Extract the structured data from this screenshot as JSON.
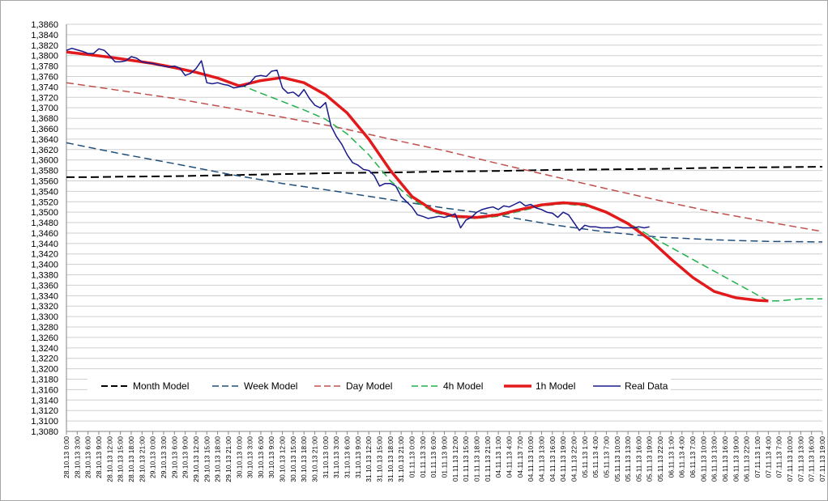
{
  "chart_data": {
    "type": "line",
    "title": "",
    "xlabel": "",
    "ylabel": "",
    "ylim": [
      1.308,
      1.386
    ],
    "y_ticks": [
      "1,3080",
      "1,3100",
      "1,3120",
      "1,3140",
      "1,3160",
      "1,3180",
      "1,3200",
      "1,3220",
      "1,3240",
      "1,3260",
      "1,3280",
      "1,3300",
      "1,3320",
      "1,3340",
      "1,3360",
      "1,3380",
      "1,3400",
      "1,3420",
      "1,3440",
      "1,3460",
      "1,3480",
      "1,3500",
      "1,3520",
      "1,3540",
      "1,3560",
      "1,3580",
      "1,3600",
      "1,3620",
      "1,3640",
      "1,3660",
      "1,3680",
      "1,3700",
      "1,3720",
      "1,3740",
      "1,3760",
      "1,3780",
      "1,3800",
      "1,3820",
      "1,3840",
      "1,3860"
    ],
    "x_ticks": [
      "28.10.13 0:00",
      "28.10.13 3:00",
      "28.10.13 6:00",
      "28.10.13 9:00",
      "28.10.13 12:00",
      "28.10.13 15:00",
      "28.10.13 18:00",
      "28.10.13 21:00",
      "29.10.13 0:00",
      "29.10.13 3:00",
      "29.10.13 6:00",
      "29.10.13 9:00",
      "29.10.13 12:00",
      "29.10.13 15:00",
      "29.10.13 18:00",
      "29.10.13 21:00",
      "30.10.13 0:00",
      "30.10.13 3:00",
      "30.10.13 6:00",
      "30.10.13 9:00",
      "30.10.13 12:00",
      "30.10.13 15:00",
      "30.10.13 18:00",
      "30.10.13 21:00",
      "31.10.13 0:00",
      "31.10.13 3:00",
      "31.10.13 6:00",
      "31.10.13 9:00",
      "31.10.13 12:00",
      "31.10.13 15:00",
      "31.10.13 18:00",
      "31.10.13 21:00",
      "01.11.13 0:00",
      "01.11.13 3:00",
      "01.11.13 6:00",
      "01.11.13 9:00",
      "01.11.13 12:00",
      "01.11.13 15:00",
      "01.11.13 18:00",
      "01.11.13 21:00",
      "04.11.13 1:00",
      "04.11.13 4:00",
      "04.11.13 7:00",
      "04.11.13 10:00",
      "04.11.13 13:00",
      "04.11.13 16:00",
      "04.11.13 19:00",
      "04.11.13 22:00",
      "05.11.13 1:00",
      "05.11.13 4:00",
      "05.11.13 7:00",
      "05.11.13 10:00",
      "05.11.13 13:00",
      "05.11.13 16:00",
      "05.11.13 19:00",
      "05.11.13 22:00",
      "06.11.13 1:00",
      "06.11.13 4:00",
      "06.11.13 7:00",
      "06.11.13 10:00",
      "06.11.13 13:00",
      "06.11.13 16:00",
      "06.11.13 19:00",
      "06.11.13 22:00",
      "07.11.13 1:00",
      "07.11.13 4:00",
      "07.11.13 7:00",
      "07.11.13 10:00",
      "07.11.13 13:00",
      "07.11.13 16:00",
      "07.11.13 19:00"
    ],
    "legend_position": "bottom-inside",
    "grid": true,
    "series": [
      {
        "name": "Month Model",
        "color": "#000000",
        "dash": "dashed",
        "width": 2,
        "x": [
          0,
          2,
          5,
          10,
          15,
          20,
          25,
          30,
          35,
          40,
          45,
          50,
          55,
          60,
          65,
          70
        ],
        "y": [
          1.3567,
          1.3567,
          1.3568,
          1.3569,
          1.3571,
          1.3573,
          1.3575,
          1.3576,
          1.3578,
          1.3579,
          1.3581,
          1.3582,
          1.3583,
          1.3585,
          1.3586,
          1.3587
        ]
      },
      {
        "name": "Week Model",
        "color": "#1f4e79",
        "dash": "dashed",
        "width": 1.5,
        "x": [
          0,
          5,
          10,
          15,
          20,
          25,
          30,
          35,
          40,
          45,
          50,
          55,
          60,
          65,
          70
        ],
        "y": [
          1.3633,
          1.3612,
          1.3593,
          1.3573,
          1.3555,
          1.354,
          1.3524,
          1.3508,
          1.3494,
          1.3476,
          1.3462,
          1.3452,
          1.3447,
          1.3444,
          1.3443
        ]
      },
      {
        "name": "Day Model",
        "color": "#c0504d",
        "dash": "dashed",
        "width": 1.5,
        "x": [
          0,
          5,
          10,
          15,
          20,
          25,
          30,
          35,
          40,
          45,
          50,
          55,
          60,
          65,
          70
        ],
        "y": [
          1.3748,
          1.3733,
          1.3718,
          1.37,
          1.3682,
          1.3663,
          1.364,
          1.3618,
          1.3593,
          1.3569,
          1.3545,
          1.3522,
          1.35,
          1.3481,
          1.3463
        ]
      },
      {
        "name": "4h Model",
        "color": "#22b14c",
        "dash": "dashed",
        "width": 1.5,
        "x": [
          16,
          18,
          20,
          22,
          24,
          26,
          28,
          30,
          32,
          34,
          36,
          38,
          40,
          42,
          44,
          46,
          48,
          50,
          52,
          54,
          65,
          66,
          67,
          68,
          70
        ],
        "y": [
          1.3745,
          1.3728,
          1.3712,
          1.3696,
          1.3678,
          1.365,
          1.361,
          1.356,
          1.3525,
          1.35,
          1.349,
          1.3488,
          1.3492,
          1.3502,
          1.3512,
          1.3516,
          1.3512,
          1.35,
          1.348,
          1.3455,
          1.333,
          1.333,
          1.3332,
          1.3334,
          1.3334
        ]
      },
      {
        "name": "1h Model",
        "color": "#e31a1c",
        "dash": "solid",
        "width": 3.5,
        "x": [
          0,
          2,
          4,
          6,
          8,
          10,
          12,
          14,
          16,
          18,
          20,
          22,
          24,
          26,
          28,
          30,
          32,
          34,
          36,
          38,
          40,
          42,
          44,
          46,
          48,
          50,
          52,
          54,
          56,
          58,
          60,
          62,
          64,
          65
        ],
        "y": [
          1.3807,
          1.3802,
          1.3797,
          1.3791,
          1.3785,
          1.3777,
          1.3768,
          1.3757,
          1.3742,
          1.3752,
          1.3758,
          1.3748,
          1.3725,
          1.369,
          1.364,
          1.358,
          1.353,
          1.3503,
          1.3492,
          1.349,
          1.3495,
          1.3505,
          1.3514,
          1.3518,
          1.3515,
          1.35,
          1.3478,
          1.3448,
          1.341,
          1.3375,
          1.3348,
          1.3336,
          1.3331,
          1.333
        ]
      },
      {
        "name": "Real Data",
        "color": "#1a1a8c",
        "dash": "solid",
        "width": 1.5,
        "x": [
          0,
          0.5,
          1,
          1.5,
          2,
          2.5,
          3,
          3.5,
          4,
          4.5,
          5,
          5.5,
          6,
          6.5,
          7,
          7.5,
          8,
          8.5,
          9,
          9.5,
          10,
          10.5,
          11,
          11.5,
          12,
          12.5,
          13,
          13.5,
          14,
          14.5,
          15,
          15.5,
          16,
          16.5,
          17,
          17.5,
          18,
          18.5,
          19,
          19.5,
          20,
          20.5,
          21,
          21.5,
          22,
          22.5,
          23,
          23.5,
          24,
          24.5,
          25,
          25.5,
          26,
          26.5,
          27,
          27.5,
          28,
          28.5,
          29,
          29.5,
          30,
          30.5,
          31,
          31.5,
          32,
          32.5,
          33,
          33.5,
          34,
          34.5,
          35,
          35.5,
          36,
          36.5,
          37,
          37.5,
          38,
          38.5,
          39,
          39.5,
          40,
          40.5,
          41,
          41.5,
          42,
          42.5,
          43,
          43.5,
          44,
          44.5,
          45,
          45.5,
          46,
          46.5,
          47,
          47.5,
          48,
          48.5,
          49,
          49.5,
          50,
          50.5,
          51,
          51.5,
          52,
          52.5,
          53,
          53.5,
          54
        ],
        "y": [
          1.381,
          1.3814,
          1.3811,
          1.3808,
          1.3804,
          1.3804,
          1.3813,
          1.381,
          1.38,
          1.3788,
          1.3788,
          1.379,
          1.3798,
          1.3795,
          1.3788,
          1.3786,
          1.3785,
          1.3782,
          1.378,
          1.3778,
          1.378,
          1.3776,
          1.3762,
          1.3766,
          1.3775,
          1.379,
          1.3748,
          1.3746,
          1.3748,
          1.3745,
          1.3743,
          1.3738,
          1.374,
          1.3742,
          1.3748,
          1.376,
          1.3762,
          1.376,
          1.377,
          1.3772,
          1.3738,
          1.3728,
          1.373,
          1.3722,
          1.3735,
          1.3718,
          1.3705,
          1.37,
          1.371,
          1.3665,
          1.3645,
          1.363,
          1.361,
          1.3595,
          1.359,
          1.3582,
          1.358,
          1.357,
          1.355,
          1.3555,
          1.3555,
          1.355,
          1.353,
          1.352,
          1.351,
          1.3495,
          1.3492,
          1.3488,
          1.349,
          1.3492,
          1.349,
          1.3493,
          1.3497,
          1.347,
          1.3485,
          1.349,
          1.35,
          1.3505,
          1.3508,
          1.351,
          1.3505,
          1.3512,
          1.351,
          1.3515,
          1.352,
          1.3512,
          1.3515,
          1.3508,
          1.3505,
          1.35,
          1.3498,
          1.349,
          1.35,
          1.3495,
          1.348,
          1.3465,
          1.3475,
          1.3472,
          1.3472,
          1.347,
          1.347,
          1.347,
          1.3472,
          1.347,
          1.347,
          1.347,
          1.3472,
          1.347,
          1.3472
        ]
      }
    ]
  }
}
